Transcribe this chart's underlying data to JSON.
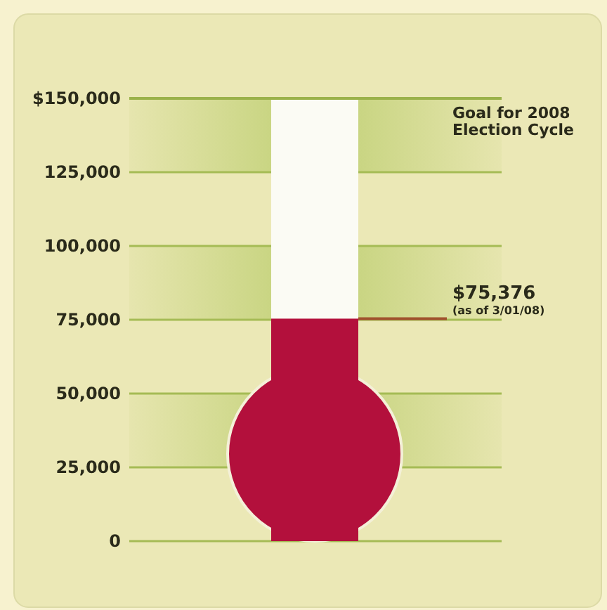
{
  "chart_data": {
    "type": "bar",
    "categories": [
      null
    ],
    "values": [
      75376
    ],
    "color": "#b3103c",
    "value_labels": [
      "$75,376"
    ],
    "ylim": [
      0,
      150000
    ],
    "yticks": [
      {
        "value": 0,
        "label": "0"
      },
      {
        "value": 25000,
        "label": "25,000"
      },
      {
        "value": 50000,
        "label": "50,000"
      },
      {
        "value": 75000,
        "label": "75,000"
      },
      {
        "value": 100000,
        "label": "100,000"
      },
      {
        "value": 125000,
        "label": "125,000"
      },
      {
        "value": 150000,
        "label": "$150,000"
      }
    ],
    "grid": "y",
    "ref_lines": [
      {
        "axis": "y",
        "value": 150000,
        "label": "Goal for 2008 Election Cycle"
      }
    ],
    "bands": [
      {
        "axis": "y",
        "from": 125000,
        "to": 150000,
        "color": "#b9cc6a"
      },
      {
        "axis": "y",
        "from": 75000,
        "to": 100000,
        "color": "#b9cc6a"
      },
      {
        "axis": "y",
        "from": 25000,
        "to": 50000,
        "color": "#b9cc6a"
      }
    ],
    "annotations": [
      {
        "text": "(as of 3/01/08)",
        "y": 75376
      }
    ]
  }
}
